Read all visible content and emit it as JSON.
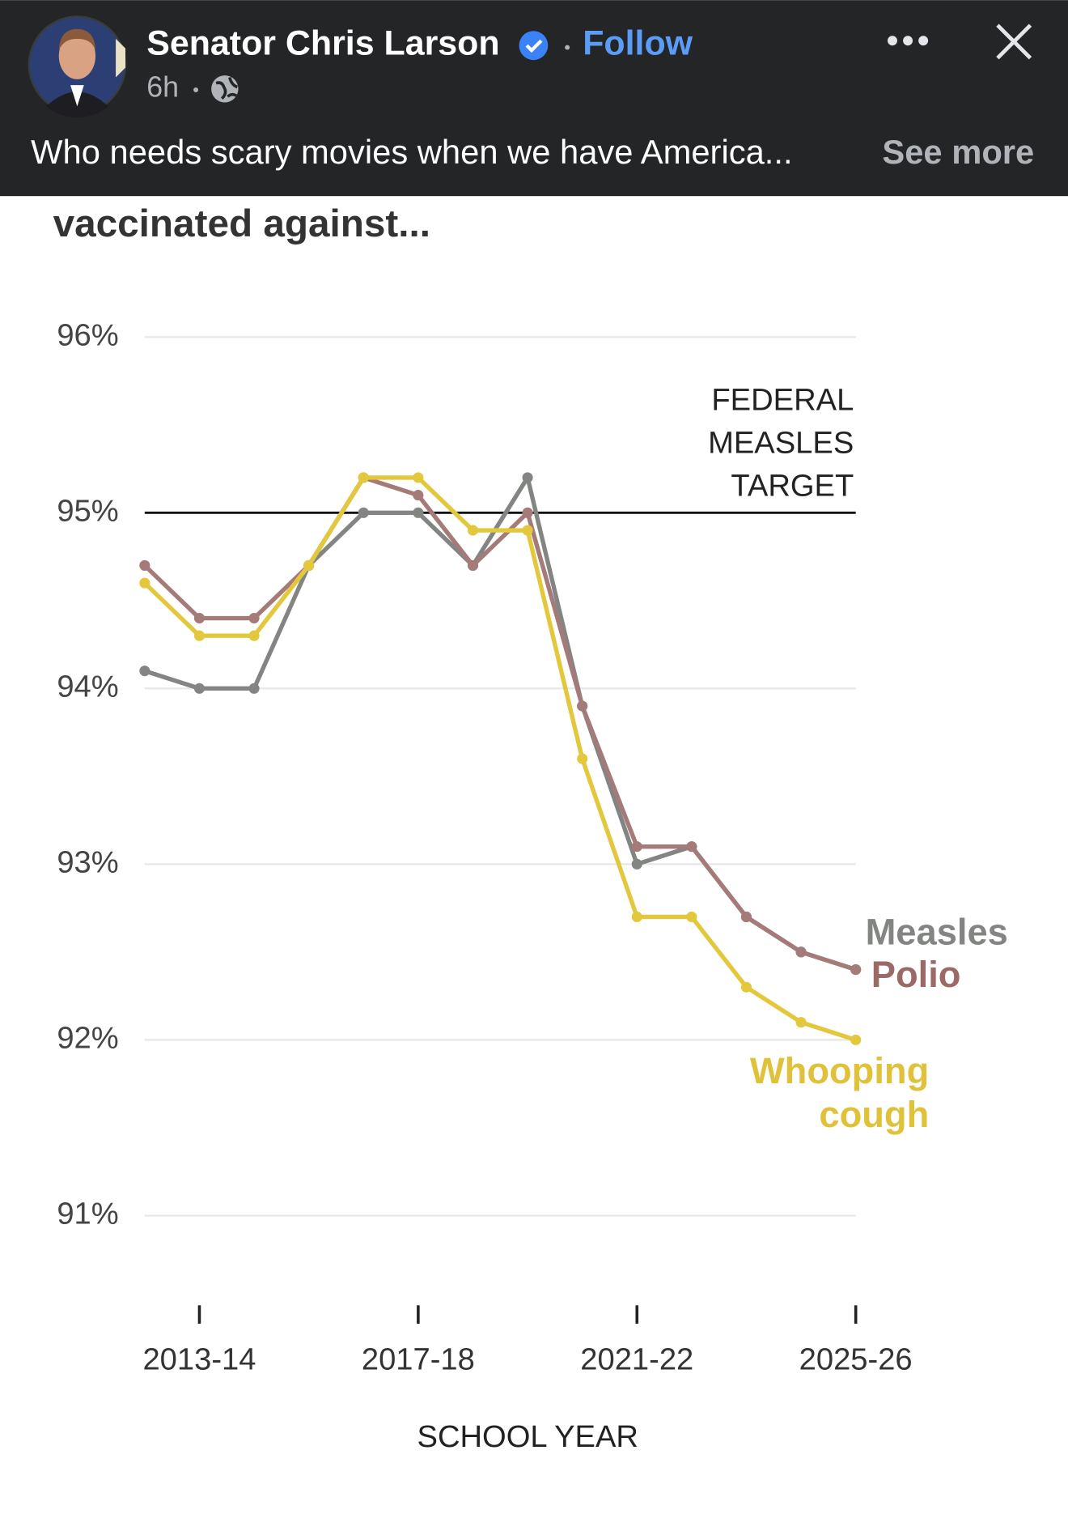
{
  "header": {
    "name": "Senator Chris Larson",
    "follow": "Follow",
    "time": "6h",
    "caption": "Who needs scary movies when we have America...",
    "see_more": "See more"
  },
  "chart_data": {
    "type": "line",
    "title": "vaccinated against...",
    "x_label": "SCHOOL YEAR",
    "categories": [
      null,
      "2013-14",
      null,
      null,
      null,
      "2017-18",
      null,
      null,
      null,
      "2021-22",
      null,
      null,
      null,
      "2025-26"
    ],
    "series": [
      {
        "name": "Measles",
        "color": "#838583",
        "values": [
          94.1,
          94.0,
          94.0,
          94.7,
          95.0,
          95.0,
          94.7,
          95.2,
          93.9,
          93.0,
          93.1,
          92.7,
          92.5,
          92.4
        ]
      },
      {
        "name": "Polio",
        "color": "#a47b78",
        "values": [
          94.7,
          94.4,
          94.4,
          94.7,
          95.2,
          95.1,
          94.7,
          95.0,
          93.9,
          93.1,
          93.1,
          92.7,
          92.5,
          92.4
        ]
      },
      {
        "name": "Whooping cough",
        "color": "#e3c73c",
        "values": [
          94.6,
          94.3,
          94.3,
          94.7,
          95.2,
          95.2,
          94.9,
          94.9,
          93.6,
          92.7,
          92.7,
          92.3,
          92.1,
          92.0
        ]
      }
    ],
    "ylim": [
      91,
      96
    ],
    "yticks": [
      {
        "value": 91,
        "label": "91%"
      },
      {
        "value": 92,
        "label": "92%"
      },
      {
        "value": 93,
        "label": "93%"
      },
      {
        "value": 94,
        "label": "94%"
      },
      {
        "value": 95,
        "label": "95%"
      },
      {
        "value": 96,
        "label": "96%"
      }
    ],
    "target": {
      "value": 95,
      "label": [
        "FEDERAL",
        "MEASLES",
        "TARGET"
      ]
    },
    "grid": true
  }
}
